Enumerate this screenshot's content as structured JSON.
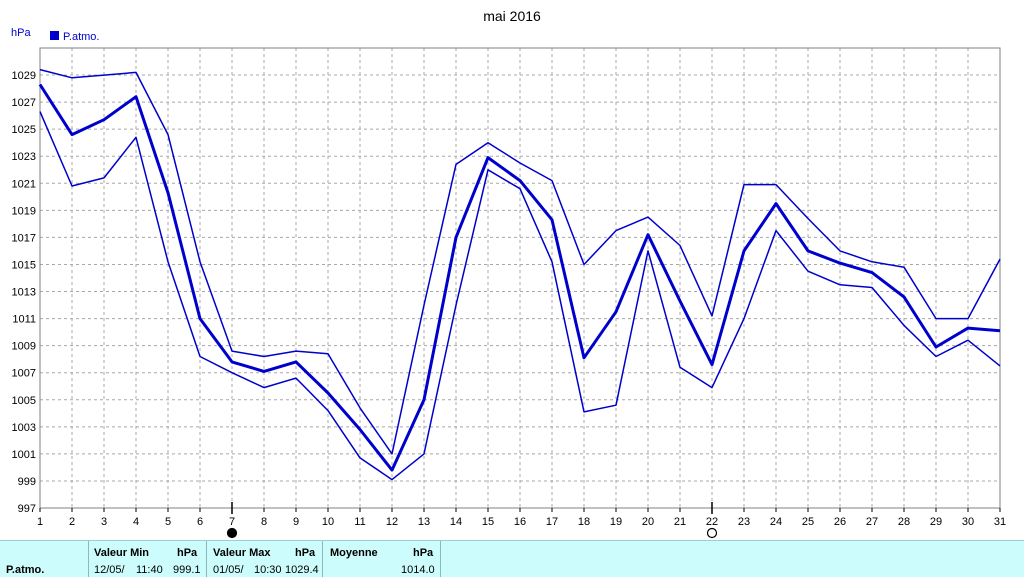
{
  "chart_data": {
    "type": "line",
    "title": "mai 2016",
    "ylabel": "hPa",
    "xlabel": "",
    "ylim": [
      997,
      1031
    ],
    "xlim": [
      1,
      31
    ],
    "y_ticks": [
      997,
      999,
      1001,
      1003,
      1005,
      1007,
      1009,
      1011,
      1013,
      1015,
      1017,
      1019,
      1021,
      1023,
      1025,
      1027,
      1029
    ],
    "x_ticks": [
      1,
      2,
      3,
      4,
      5,
      6,
      7,
      8,
      9,
      10,
      11,
      12,
      13,
      14,
      15,
      16,
      17,
      18,
      19,
      20,
      21,
      22,
      23,
      24,
      25,
      26,
      27,
      28,
      29,
      30,
      31
    ],
    "grid": true,
    "legend": {
      "position": "top-left",
      "label": "P.atmo."
    },
    "moon_markers": [
      {
        "day": 7,
        "phase": "new-moon"
      },
      {
        "day": 22,
        "phase": "full-moon"
      }
    ],
    "x": [
      1,
      2,
      3,
      4,
      5,
      6,
      7,
      8,
      9,
      10,
      11,
      12,
      13,
      14,
      15,
      16,
      17,
      18,
      19,
      20,
      21,
      22,
      23,
      24,
      25,
      26,
      27,
      28,
      29,
      30,
      31
    ],
    "series": [
      {
        "role": "max",
        "values": [
          1029.4,
          1028.8,
          1029.0,
          1029.2,
          1024.6,
          1015.2,
          1008.6,
          1008.2,
          1008.6,
          1008.4,
          1004.4,
          1001.0,
          1012.0,
          1022.4,
          1024.0,
          1022.5,
          1021.2,
          1015.0,
          1017.5,
          1018.5,
          1016.4,
          1011.2,
          1020.9,
          1020.9,
          1018.4,
          1016.0,
          1015.2,
          1014.8,
          1011.0,
          1011.0,
          1015.4
        ]
      },
      {
        "role": "avg",
        "values": [
          1028.3,
          1024.6,
          1025.7,
          1027.4,
          1020.3,
          1011.0,
          1007.8,
          1007.1,
          1007.8,
          1005.5,
          1002.8,
          999.8,
          1005.0,
          1017.0,
          1022.9,
          1021.2,
          1018.3,
          1008.1,
          1011.5,
          1017.2,
          1012.3,
          1007.6,
          1016.0,
          1019.5,
          1016.0,
          1015.1,
          1014.4,
          1012.6,
          1008.9,
          1010.3,
          1010.1
        ]
      },
      {
        "role": "min",
        "values": [
          1026.3,
          1020.8,
          1021.4,
          1024.4,
          1015.2,
          1008.2,
          1007.0,
          1005.9,
          1006.6,
          1004.2,
          1000.7,
          999.1,
          1001.0,
          1012.0,
          1022.0,
          1020.6,
          1015.2,
          1004.1,
          1004.6,
          1016.0,
          1007.4,
          1005.9,
          1011.0,
          1017.5,
          1014.5,
          1013.5,
          1013.3,
          1010.5,
          1008.2,
          1009.4,
          1007.5
        ]
      }
    ],
    "colors": {
      "line": "#0000cc",
      "grid": "#a8a8a8",
      "frame": "#808080",
      "legend": "#0000cc"
    }
  },
  "stats": {
    "series_name": "P.atmo.",
    "min": {
      "header": "Valeur Min",
      "unit": "hPa",
      "date": "12/05/",
      "time": "11:40",
      "value": "999.1"
    },
    "max": {
      "header": "Valeur Max",
      "unit": "hPa",
      "date": "01/05/",
      "time": "10:30",
      "value": "1029.4"
    },
    "avg": {
      "header": "Moyenne",
      "unit": "hPa",
      "value": "1014.0"
    }
  }
}
